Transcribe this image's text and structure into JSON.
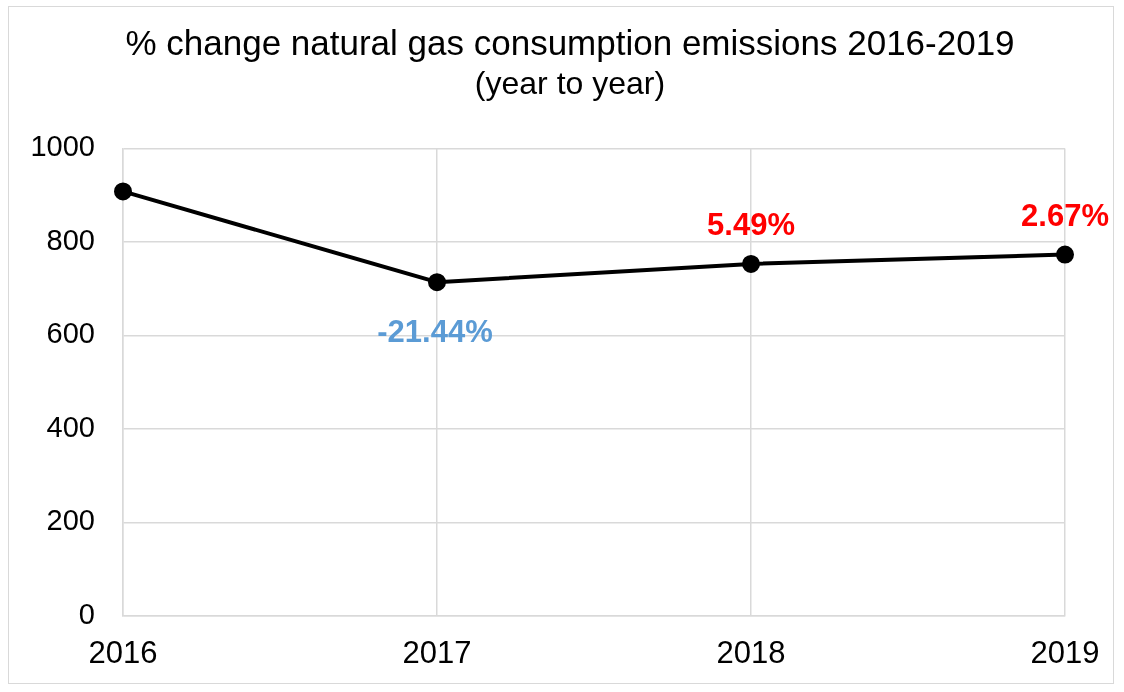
{
  "chart_data": {
    "type": "line",
    "title": "% change natural gas consumption emissions 2016-2019",
    "subtitle": "(year to year)",
    "categories": [
      "2016",
      "2017",
      "2018",
      "2019"
    ],
    "values": [
      908,
      714,
      753,
      773
    ],
    "color": "#000000",
    "marker": "circle",
    "annotations": [
      {
        "text": "-21.44%",
        "x": "2017",
        "y": 714
      },
      {
        "text": "5.49%",
        "x": "2018",
        "y": 753
      },
      {
        "text": "2.67%",
        "x": "2019",
        "y": 773
      }
    ],
    "ylim": [
      0,
      1000
    ],
    "yticks": [
      0,
      200,
      400,
      600,
      800,
      1000
    ],
    "grid": true
  }
}
